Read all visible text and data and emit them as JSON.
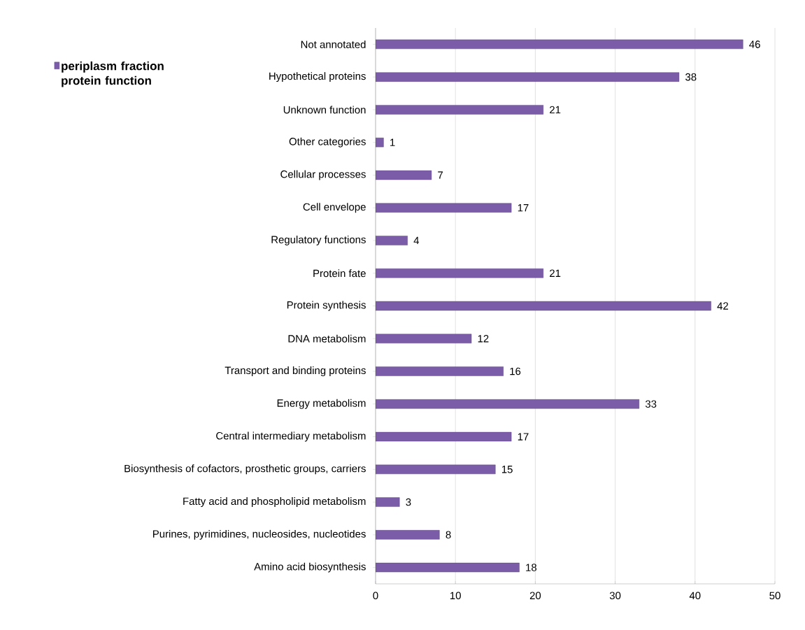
{
  "chart_data": {
    "type": "bar",
    "orientation": "horizontal",
    "categories": [
      "Not annotated",
      "Hypothetical proteins",
      "Unknown  function",
      "Other categories",
      "Cellular processes",
      "Cell envelope",
      "Regulatory functions",
      "Protein fate",
      "Protein synthesis",
      "DNA metabolism",
      "Transport and binding proteins",
      "Energy metabolism",
      "Central intermediary metabolism",
      "Biosynthesis of cofactors, prosthetic groups, carriers",
      "Fatty acid and phospholipid metabolism",
      "Purines, pyrimidines, nucleosides, nucleotides",
      "Amino acid biosynthesis"
    ],
    "series": [
      {
        "name": "periplasm fraction protein function",
        "color": "#7b5ca8",
        "values": [
          46,
          38,
          21,
          1,
          7,
          17,
          4,
          21,
          42,
          12,
          16,
          33,
          17,
          15,
          3,
          8,
          18
        ]
      }
    ],
    "xlim": [
      0,
      50
    ],
    "xticks": [
      0,
      10,
      20,
      30,
      40,
      50
    ],
    "grid": "x",
    "legend": "top left",
    "data_labels": true
  }
}
